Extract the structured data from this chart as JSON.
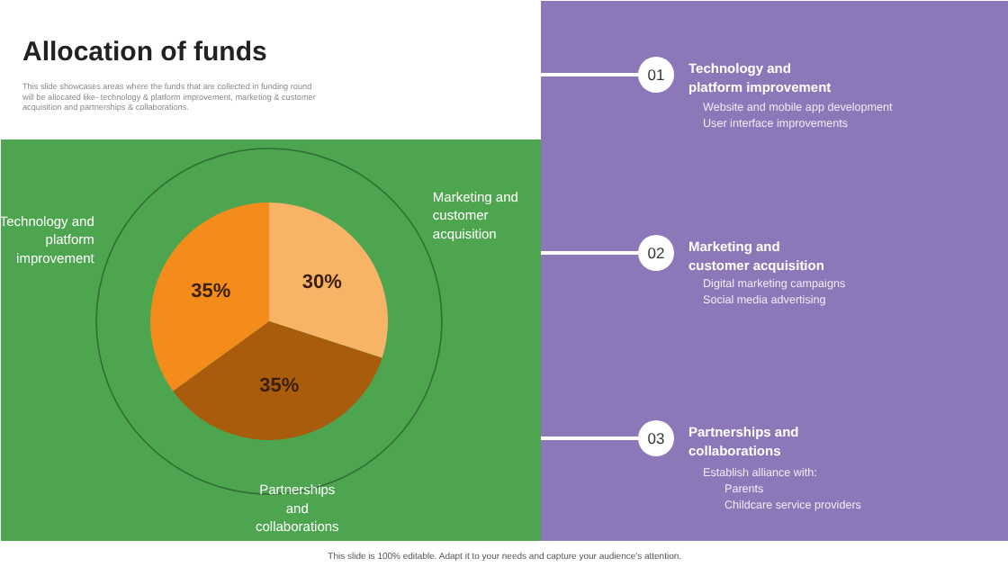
{
  "chart_data": {
    "type": "pie",
    "title": "Allocation of funds",
    "subtitle": "This slide showcases areas where the funds that are collected in funding round will be allocated like- technology & platform improvement, marketing & customer acquisition and partnerships & collaborations.",
    "categories": [
      "Marketing and customer acquisition",
      "Partnerships and collaborations",
      "Technology and platform improvement"
    ],
    "values": [
      30,
      35,
      35
    ],
    "colors": [
      "#f7b366",
      "#a85c0c",
      "#f48c1c"
    ],
    "value_labels": [
      "30%",
      "35%",
      "35%"
    ],
    "annotations": [
      "01",
      "Technology and platform improvement",
      "Website and mobile app development",
      "User interface improvements",
      "02",
      "Marketing and customer acquisition",
      "Digital marketing campaigns",
      "Social media advertising",
      "03",
      "Partnerships and collaborations",
      "Establish alliance with:",
      "Parents",
      "Childcare service providers",
      "This slide is 100% editable. Adapt it to your needs and capture your audience's attention."
    ]
  }
}
